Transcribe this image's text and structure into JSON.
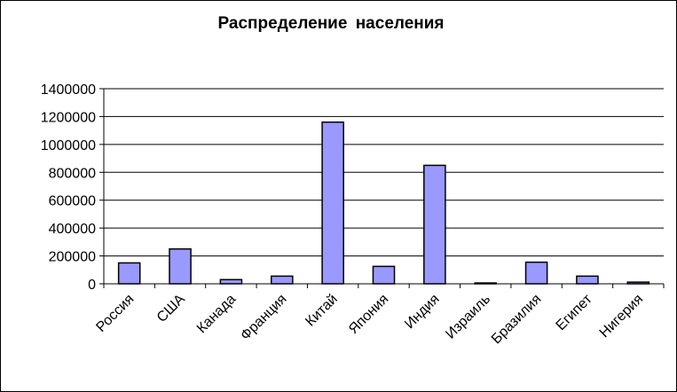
{
  "chart_data": {
    "type": "bar",
    "title": "Распределение населения",
    "categories": [
      "Россия",
      "США",
      "Канада",
      "Франция",
      "Китай",
      "Япония",
      "Индия",
      "Израиль",
      "Бразилия",
      "Египет",
      "Нигерия"
    ],
    "values": [
      150000,
      250000,
      30000,
      55000,
      1160000,
      125000,
      850000,
      6000,
      155000,
      55000,
      12000
    ],
    "color": "#9999ff",
    "ylim": [
      0,
      1400000
    ],
    "yticks": [
      0,
      200000,
      400000,
      600000,
      800000,
      1000000,
      1200000,
      1400000
    ],
    "grid": true
  }
}
